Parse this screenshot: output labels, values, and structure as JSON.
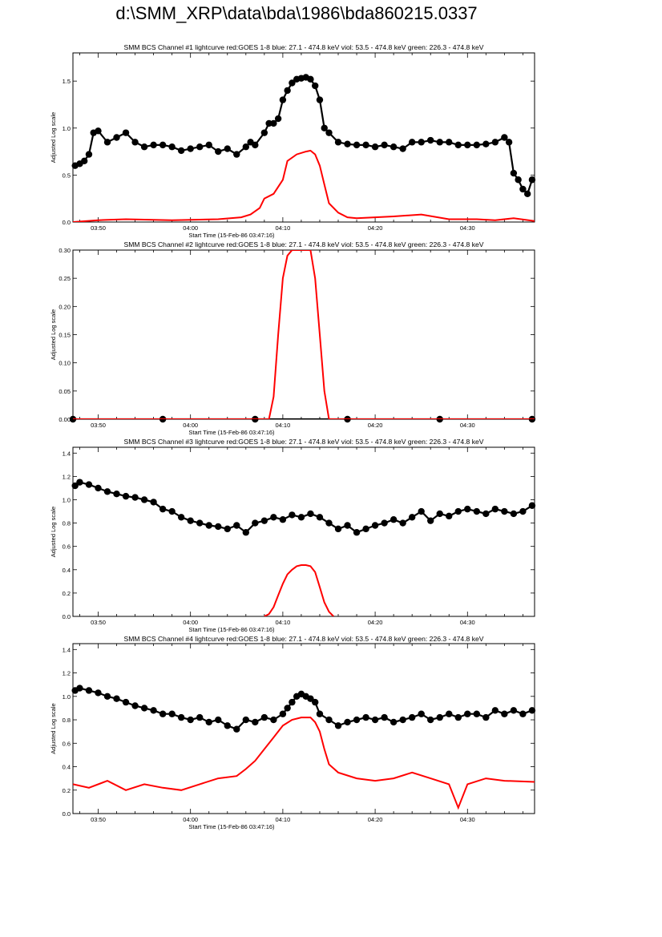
{
  "page_title": "d:\\SMM_XRP\\data\\bda\\1986\\bda860215.0337",
  "colors": {
    "goes": "#ff0000",
    "bcs": "#000000",
    "axis": "#000000",
    "background": "#ffffff"
  },
  "chart_data": [
    {
      "type": "line",
      "title": "SMM BCS Channel #1 lightcurve  red:GOES 1-8  blue: 27.1 - 474.8 keV  viol: 53.5 - 474.8 keV  green: 226.3 - 474.8 keV",
      "xlabel": "Start Time (15-Feb-86 03:47:16)",
      "ylabel": "Adjusted Log scale",
      "xlim": [
        "03:47:16",
        "04:37:16"
      ],
      "x_ticks": [
        "03:50",
        "04:00",
        "04:10",
        "04:20",
        "04:30"
      ],
      "ylim": [
        0,
        1.8
      ],
      "y_ticks": [
        "0.0",
        "0.5",
        "1.0",
        "1.5"
      ],
      "series": [
        {
          "color": "#000000",
          "marker": "circle",
          "x": [
            "03:47:30",
            "03:48:00",
            "03:48:30",
            "03:49:00",
            "03:49:30",
            "03:50:00",
            "03:51:00",
            "03:52:00",
            "03:53:00",
            "03:54:00",
            "03:55:00",
            "03:56:00",
            "03:57:00",
            "03:58:00",
            "03:59:00",
            "04:00:00",
            "04:01:00",
            "04:02:00",
            "04:03:00",
            "04:04:00",
            "04:05:00",
            "04:06:00",
            "04:06:30",
            "04:07:00",
            "04:08:00",
            "04:08:30",
            "04:09:00",
            "04:09:30",
            "04:10:00",
            "04:10:30",
            "04:11:00",
            "04:11:30",
            "04:12:00",
            "04:12:30",
            "04:13:00",
            "04:13:30",
            "04:14:00",
            "04:14:30",
            "04:15:00",
            "04:16:00",
            "04:17:00",
            "04:18:00",
            "04:19:00",
            "04:20:00",
            "04:21:00",
            "04:22:00",
            "04:23:00",
            "04:24:00",
            "04:25:00",
            "04:26:00",
            "04:27:00",
            "04:28:00",
            "04:29:00",
            "04:30:00",
            "04:31:00",
            "04:32:00",
            "04:33:00",
            "04:34:00",
            "04:34:30",
            "04:35:00",
            "04:35:30",
            "04:36:00",
            "04:36:30",
            "04:37:00"
          ],
          "y": [
            0.6,
            0.62,
            0.65,
            0.72,
            0.95,
            0.97,
            0.85,
            0.9,
            0.95,
            0.85,
            0.8,
            0.82,
            0.82,
            0.8,
            0.76,
            0.78,
            0.8,
            0.82,
            0.75,
            0.78,
            0.72,
            0.8,
            0.85,
            0.82,
            0.95,
            1.05,
            1.05,
            1.1,
            1.3,
            1.4,
            1.48,
            1.52,
            1.53,
            1.54,
            1.52,
            1.45,
            1.3,
            1.0,
            0.95,
            0.85,
            0.83,
            0.82,
            0.82,
            0.8,
            0.82,
            0.8,
            0.78,
            0.85,
            0.85,
            0.87,
            0.85,
            0.85,
            0.82,
            0.82,
            0.82,
            0.83,
            0.85,
            0.9,
            0.85,
            0.52,
            0.45,
            0.35,
            0.3,
            0.45
          ]
        },
        {
          "color": "#ff0000",
          "marker": "none",
          "x": [
            "03:47:16",
            "03:50:00",
            "03:53:00",
            "03:58:00",
            "04:03:00",
            "04:05:30",
            "04:06:30",
            "04:07:30",
            "04:08:00",
            "04:09:00",
            "04:10:00",
            "04:10:30",
            "04:11:30",
            "04:12:30",
            "04:13:00",
            "04:13:30",
            "04:14:00",
            "04:14:30",
            "04:15:00",
            "04:16:00",
            "04:17:00",
            "04:18:00",
            "04:20:00",
            "04:22:00",
            "04:25:00",
            "04:28:00",
            "04:31:00",
            "04:33:00",
            "04:35:00",
            "04:37:16"
          ],
          "y": [
            0.0,
            0.02,
            0.03,
            0.02,
            0.03,
            0.05,
            0.08,
            0.15,
            0.25,
            0.3,
            0.45,
            0.65,
            0.72,
            0.75,
            0.76,
            0.72,
            0.6,
            0.4,
            0.2,
            0.1,
            0.05,
            0.04,
            0.05,
            0.06,
            0.08,
            0.03,
            0.03,
            0.02,
            0.04,
            0.01
          ]
        }
      ]
    },
    {
      "type": "line",
      "title": "SMM BCS Channel #2 lightcurve  red:GOES 1-8  blue: 27.1 - 474.8 keV  viol: 53.5 - 474.8 keV  green: 226.3 - 474.8 keV",
      "xlabel": "Start Time (15-Feb-86 03:47:16)",
      "ylabel": "Adjusted Log scale",
      "xlim": [
        "03:47:16",
        "04:37:16"
      ],
      "x_ticks": [
        "03:50",
        "04:00",
        "04:10",
        "04:20",
        "04:30"
      ],
      "ylim": [
        0,
        0.3
      ],
      "y_ticks": [
        "0.00",
        "0.05",
        "0.10",
        "0.15",
        "0.20",
        "0.25",
        "0.30"
      ],
      "series": [
        {
          "color": "#000000",
          "marker": "circle",
          "x": [
            "03:47:16",
            "03:57:00",
            "04:07:00",
            "04:17:00",
            "04:27:00",
            "04:37:00"
          ],
          "y": [
            0,
            0,
            0,
            0,
            0,
            0
          ]
        },
        {
          "color": "#ff0000",
          "marker": "none",
          "x": [
            "03:47:16",
            "04:08:30",
            "04:09:00",
            "04:09:30",
            "04:10:00",
            "04:10:30",
            "04:11:00",
            "04:11:30",
            "04:12:30",
            "04:13:00",
            "04:13:30",
            "04:14:00",
            "04:14:30",
            "04:15:00",
            "04:37:16"
          ],
          "y": [
            0,
            0,
            0.04,
            0.15,
            0.25,
            0.29,
            0.3,
            0.3,
            0.3,
            0.3,
            0.25,
            0.15,
            0.05,
            0,
            0
          ]
        }
      ]
    },
    {
      "type": "line",
      "title": "SMM BCS Channel #3 lightcurve  red:GOES 1-8  blue: 27.1 - 474.8 keV  viol: 53.5 - 474.8 keV  green: 226.3 - 474.8 keV",
      "xlabel": "Start Time (15-Feb-86 03:47:16)",
      "ylabel": "Adjusted Log scale",
      "xlim": [
        "03:47:16",
        "04:37:16"
      ],
      "x_ticks": [
        "03:50",
        "04:00",
        "04:10",
        "04:20",
        "04:30"
      ],
      "ylim": [
        0,
        1.45
      ],
      "y_ticks": [
        "0.0",
        "0.2",
        "0.4",
        "0.6",
        "0.8",
        "1.0",
        "1.2",
        "1.4"
      ],
      "series": [
        {
          "color": "#000000",
          "marker": "circle",
          "x": [
            "03:47:30",
            "03:48:00",
            "03:49:00",
            "03:50:00",
            "03:51:00",
            "03:52:00",
            "03:53:00",
            "03:54:00",
            "03:55:00",
            "03:56:00",
            "03:57:00",
            "03:58:00",
            "03:59:00",
            "04:00:00",
            "04:01:00",
            "04:02:00",
            "04:03:00",
            "04:04:00",
            "04:05:00",
            "04:06:00",
            "04:07:00",
            "04:08:00",
            "04:09:00",
            "04:10:00",
            "04:11:00",
            "04:12:00",
            "04:13:00",
            "04:14:00",
            "04:15:00",
            "04:16:00",
            "04:17:00",
            "04:18:00",
            "04:19:00",
            "04:20:00",
            "04:21:00",
            "04:22:00",
            "04:23:00",
            "04:24:00",
            "04:25:00",
            "04:26:00",
            "04:27:00",
            "04:28:00",
            "04:29:00",
            "04:30:00",
            "04:31:00",
            "04:32:00",
            "04:33:00",
            "04:34:00",
            "04:35:00",
            "04:36:00",
            "04:37:00"
          ],
          "y": [
            1.12,
            1.15,
            1.13,
            1.1,
            1.07,
            1.05,
            1.03,
            1.02,
            1.0,
            0.98,
            0.92,
            0.9,
            0.85,
            0.82,
            0.8,
            0.78,
            0.77,
            0.75,
            0.78,
            0.72,
            0.8,
            0.82,
            0.85,
            0.83,
            0.87,
            0.85,
            0.88,
            0.85,
            0.8,
            0.75,
            0.78,
            0.72,
            0.75,
            0.78,
            0.8,
            0.83,
            0.8,
            0.85,
            0.9,
            0.82,
            0.88,
            0.86,
            0.9,
            0.92,
            0.9,
            0.88,
            0.92,
            0.9,
            0.88,
            0.9,
            0.95
          ]
        },
        {
          "color": "#ff0000",
          "marker": "none",
          "x": [
            "04:08:00",
            "04:08:30",
            "04:09:00",
            "04:09:30",
            "04:10:00",
            "04:10:30",
            "04:11:00",
            "04:11:30",
            "04:12:00",
            "04:12:30",
            "04:13:00",
            "04:13:30",
            "04:14:00",
            "04:14:30",
            "04:15:00",
            "04:15:30"
          ],
          "y": [
            0.0,
            0.02,
            0.08,
            0.18,
            0.28,
            0.36,
            0.4,
            0.43,
            0.44,
            0.44,
            0.43,
            0.38,
            0.25,
            0.12,
            0.04,
            0.0
          ]
        }
      ]
    },
    {
      "type": "line",
      "title": "SMM BCS Channel #4 lightcurve  red:GOES 1-8  blue: 27.1 - 474.8 keV  viol: 53.5 - 474.8 keV  green: 226.3 - 474.8 keV",
      "xlabel": "Start Time (15-Feb-86 03:47:16)",
      "ylabel": "Adjusted Log scale",
      "xlim": [
        "03:47:16",
        "04:37:16"
      ],
      "x_ticks": [
        "03:50",
        "04:00",
        "04:10",
        "04:20",
        "04:30"
      ],
      "ylim": [
        0,
        1.45
      ],
      "y_ticks": [
        "0.0",
        "0.2",
        "0.4",
        "0.6",
        "0.8",
        "1.0",
        "1.2",
        "1.4"
      ],
      "series": [
        {
          "color": "#000000",
          "marker": "circle",
          "x": [
            "03:47:30",
            "03:48:00",
            "03:49:00",
            "03:50:00",
            "03:51:00",
            "03:52:00",
            "03:53:00",
            "03:54:00",
            "03:55:00",
            "03:56:00",
            "03:57:00",
            "03:58:00",
            "03:59:00",
            "04:00:00",
            "04:01:00",
            "04:02:00",
            "04:03:00",
            "04:04:00",
            "04:05:00",
            "04:06:00",
            "04:07:00",
            "04:08:00",
            "04:09:00",
            "04:10:00",
            "04:10:30",
            "04:11:00",
            "04:11:30",
            "04:12:00",
            "04:12:30",
            "04:13:00",
            "04:13:30",
            "04:14:00",
            "04:15:00",
            "04:16:00",
            "04:17:00",
            "04:18:00",
            "04:19:00",
            "04:20:00",
            "04:21:00",
            "04:22:00",
            "04:23:00",
            "04:24:00",
            "04:25:00",
            "04:26:00",
            "04:27:00",
            "04:28:00",
            "04:29:00",
            "04:30:00",
            "04:31:00",
            "04:32:00",
            "04:33:00",
            "04:34:00",
            "04:35:00",
            "04:36:00",
            "04:37:00"
          ],
          "y": [
            1.05,
            1.07,
            1.05,
            1.03,
            1.0,
            0.98,
            0.95,
            0.92,
            0.9,
            0.88,
            0.85,
            0.85,
            0.82,
            0.8,
            0.82,
            0.78,
            0.8,
            0.75,
            0.72,
            0.8,
            0.78,
            0.82,
            0.8,
            0.85,
            0.9,
            0.95,
            1.0,
            1.02,
            1.0,
            0.98,
            0.95,
            0.85,
            0.8,
            0.75,
            0.78,
            0.8,
            0.82,
            0.8,
            0.82,
            0.78,
            0.8,
            0.82,
            0.85,
            0.8,
            0.82,
            0.85,
            0.82,
            0.85,
            0.85,
            0.82,
            0.88,
            0.85,
            0.88,
            0.85,
            0.88
          ]
        },
        {
          "color": "#ff0000",
          "marker": "none",
          "x": [
            "03:47:16",
            "03:49:00",
            "03:51:00",
            "03:53:00",
            "03:55:00",
            "03:57:00",
            "03:59:00",
            "04:01:00",
            "04:03:00",
            "04:05:00",
            "04:06:00",
            "04:07:00",
            "04:08:00",
            "04:09:00",
            "04:10:00",
            "04:11:00",
            "04:12:00",
            "04:13:00",
            "04:13:30",
            "04:14:00",
            "04:14:30",
            "04:15:00",
            "04:16:00",
            "04:18:00",
            "04:20:00",
            "04:22:00",
            "04:24:00",
            "04:26:00",
            "04:28:00",
            "04:29:00",
            "04:30:00",
            "04:32:00",
            "04:34:00",
            "04:37:16"
          ],
          "y": [
            0.25,
            0.22,
            0.28,
            0.2,
            0.25,
            0.22,
            0.2,
            0.25,
            0.3,
            0.32,
            0.38,
            0.45,
            0.55,
            0.65,
            0.75,
            0.8,
            0.82,
            0.82,
            0.78,
            0.7,
            0.55,
            0.42,
            0.35,
            0.3,
            0.28,
            0.3,
            0.35,
            0.3,
            0.25,
            0.05,
            0.25,
            0.3,
            0.28,
            0.27
          ]
        }
      ]
    }
  ]
}
